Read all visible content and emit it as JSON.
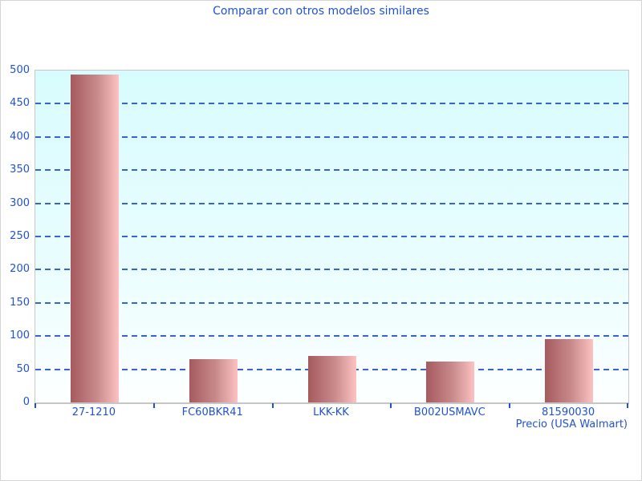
{
  "chart_data": {
    "type": "bar",
    "title": "Comparar con otros modelos similares",
    "categories": [
      "27-1210",
      "FC60BKR41",
      "LKK-KK",
      "B002USMAVC",
      "81590030"
    ],
    "values": [
      494,
      65,
      70,
      62,
      95
    ],
    "xlabel": "Precio (USA Walmart)",
    "ylabel": "",
    "ylim": [
      0,
      500
    ],
    "yticks": [
      0,
      50,
      100,
      150,
      200,
      250,
      300,
      350,
      400,
      450,
      500
    ],
    "gridlines": "horizontal dashed at 50..450",
    "legend": "none",
    "colors": {
      "bar_gradient_left": "#a65a5e",
      "bar_gradient_right": "#fcc2c2",
      "text_blue": "#2152cc",
      "gridline_blue": "#3565c8",
      "plot_bg_top": "#d8fcfd",
      "plot_bg_bottom": "#ffffff",
      "axis_border_gray": "#c9c9c9"
    }
  }
}
